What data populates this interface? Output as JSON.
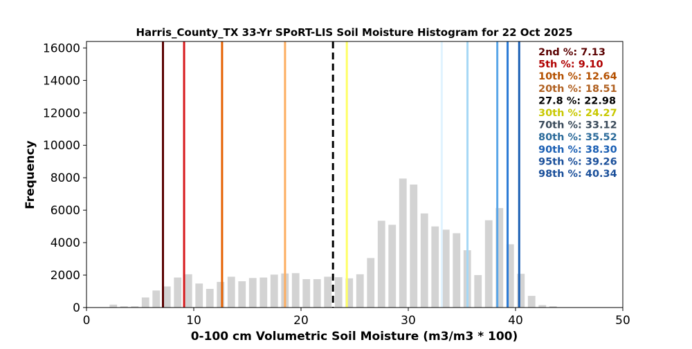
{
  "chart_data": {
    "type": "bar",
    "title": "Harris_County_TX 33-Yr SPoRT-LIS Soil Moisture Histogram for 22 Oct 2025",
    "xlabel": "0-100 cm Volumetric Soil Moisture (m3/m3 * 100)",
    "ylabel": "Frequency",
    "xlim": [
      0,
      50
    ],
    "ylim": [
      0,
      16400
    ],
    "xticks": [
      0,
      10,
      20,
      30,
      40,
      50
    ],
    "yticks": [
      0,
      2000,
      4000,
      6000,
      8000,
      10000,
      12000,
      14000,
      16000
    ],
    "bar_color": "#d3d3d3",
    "bars": [
      {
        "x": 2.5,
        "value": 180
      },
      {
        "x": 3.5,
        "value": 80
      },
      {
        "x": 4.5,
        "value": 80
      },
      {
        "x": 5.5,
        "value": 620
      },
      {
        "x": 6.5,
        "value": 1050
      },
      {
        "x": 7.5,
        "value": 1300
      },
      {
        "x": 8.5,
        "value": 1850
      },
      {
        "x": 9.5,
        "value": 2050
      },
      {
        "x": 10.5,
        "value": 1480
      },
      {
        "x": 11.5,
        "value": 1150
      },
      {
        "x": 12.5,
        "value": 1580
      },
      {
        "x": 13.5,
        "value": 1900
      },
      {
        "x": 14.5,
        "value": 1620
      },
      {
        "x": 15.5,
        "value": 1820
      },
      {
        "x": 16.5,
        "value": 1850
      },
      {
        "x": 17.5,
        "value": 2030
      },
      {
        "x": 18.5,
        "value": 2100
      },
      {
        "x": 19.5,
        "value": 2120
      },
      {
        "x": 20.5,
        "value": 1750
      },
      {
        "x": 21.5,
        "value": 1750
      },
      {
        "x": 22.5,
        "value": 1900
      },
      {
        "x": 23.5,
        "value": 1870
      },
      {
        "x": 24.5,
        "value": 1800
      },
      {
        "x": 25.5,
        "value": 2050
      },
      {
        "x": 26.5,
        "value": 3050
      },
      {
        "x": 27.5,
        "value": 5350
      },
      {
        "x": 28.5,
        "value": 5100
      },
      {
        "x": 29.5,
        "value": 7950
      },
      {
        "x": 30.5,
        "value": 7580
      },
      {
        "x": 31.5,
        "value": 5800
      },
      {
        "x": 32.5,
        "value": 5000
      },
      {
        "x": 33.5,
        "value": 4800
      },
      {
        "x": 34.5,
        "value": 4580
      },
      {
        "x": 35.5,
        "value": 3530
      },
      {
        "x": 36.5,
        "value": 2000
      },
      {
        "x": 37.5,
        "value": 5380
      },
      {
        "x": 38.5,
        "value": 6130
      },
      {
        "x": 39.5,
        "value": 3900
      },
      {
        "x": 40.5,
        "value": 2080
      },
      {
        "x": 41.5,
        "value": 720
      },
      {
        "x": 42.5,
        "value": 150
      },
      {
        "x": 43.5,
        "value": 80
      }
    ],
    "percentile_lines": [
      {
        "label": "2nd %: 7.13",
        "x": 7.13,
        "color": "#5a0000",
        "dashed": false
      },
      {
        "label": "5th %: 9.10",
        "x": 9.1,
        "color": "#d7191c",
        "dashed": false
      },
      {
        "label": "10th %: 12.64",
        "x": 12.64,
        "color": "#e66101",
        "dashed": false
      },
      {
        "label": "20th %: 18.51",
        "x": 18.51,
        "color": "#fdae61",
        "dashed": false
      },
      {
        "label": "27.8 %: 22.98",
        "x": 22.98,
        "color": "#000000",
        "dashed": true
      },
      {
        "label": "30th %: 24.27",
        "x": 24.27,
        "color": "#ffff66",
        "dashed": false
      },
      {
        "label": "70th %: 33.12",
        "x": 33.12,
        "color": "#e0f3ff",
        "dashed": false
      },
      {
        "label": "80th %: 35.52",
        "x": 35.52,
        "color": "#a6d8f5",
        "dashed": false
      },
      {
        "label": "90th %: 38.30",
        "x": 38.3,
        "color": "#5aa6e8",
        "dashed": false
      },
      {
        "label": "95th %: 39.26",
        "x": 39.26,
        "color": "#2c7bd6",
        "dashed": false
      },
      {
        "label": "98th %: 40.34",
        "x": 40.34,
        "color": "#1a5fb4",
        "dashed": false
      }
    ],
    "legend_text_colors": [
      "#5a0000",
      "#b00000",
      "#b45000",
      "#b06020",
      "#000000",
      "#c8c800",
      "#3a4a5a",
      "#2a6a9a",
      "#1a5fb4",
      "#1a4f9a",
      "#1a4f9a"
    ],
    "legend_placement": "top-right",
    "grid": false
  }
}
